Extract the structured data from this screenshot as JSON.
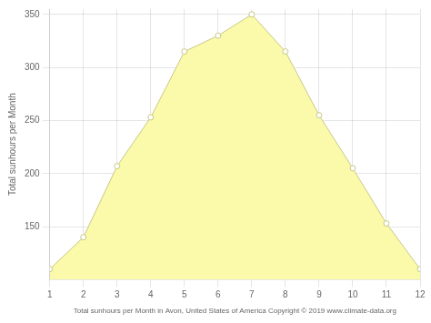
{
  "chart_data": {
    "type": "area",
    "x": [
      1,
      2,
      3,
      4,
      5,
      6,
      7,
      8,
      9,
      10,
      11,
      12
    ],
    "values": [
      110,
      140,
      207,
      253,
      315,
      330,
      350,
      315,
      255,
      205,
      153,
      110
    ],
    "color": "#FAFAAA",
    "marker": "o",
    "xlabel": "Total sunhours per Month in Avon, United States of America Copyright © 2019 www.climate-data.org",
    "ylabel": "Total sunhours per Month",
    "xlim": [
      1,
      12
    ],
    "ylim": [
      100,
      355
    ],
    "xticks": [
      1,
      2,
      3,
      4,
      5,
      6,
      7,
      8,
      9,
      10,
      11,
      12
    ],
    "yticks": [
      150,
      200,
      250,
      300,
      350
    ],
    "grid": true
  }
}
